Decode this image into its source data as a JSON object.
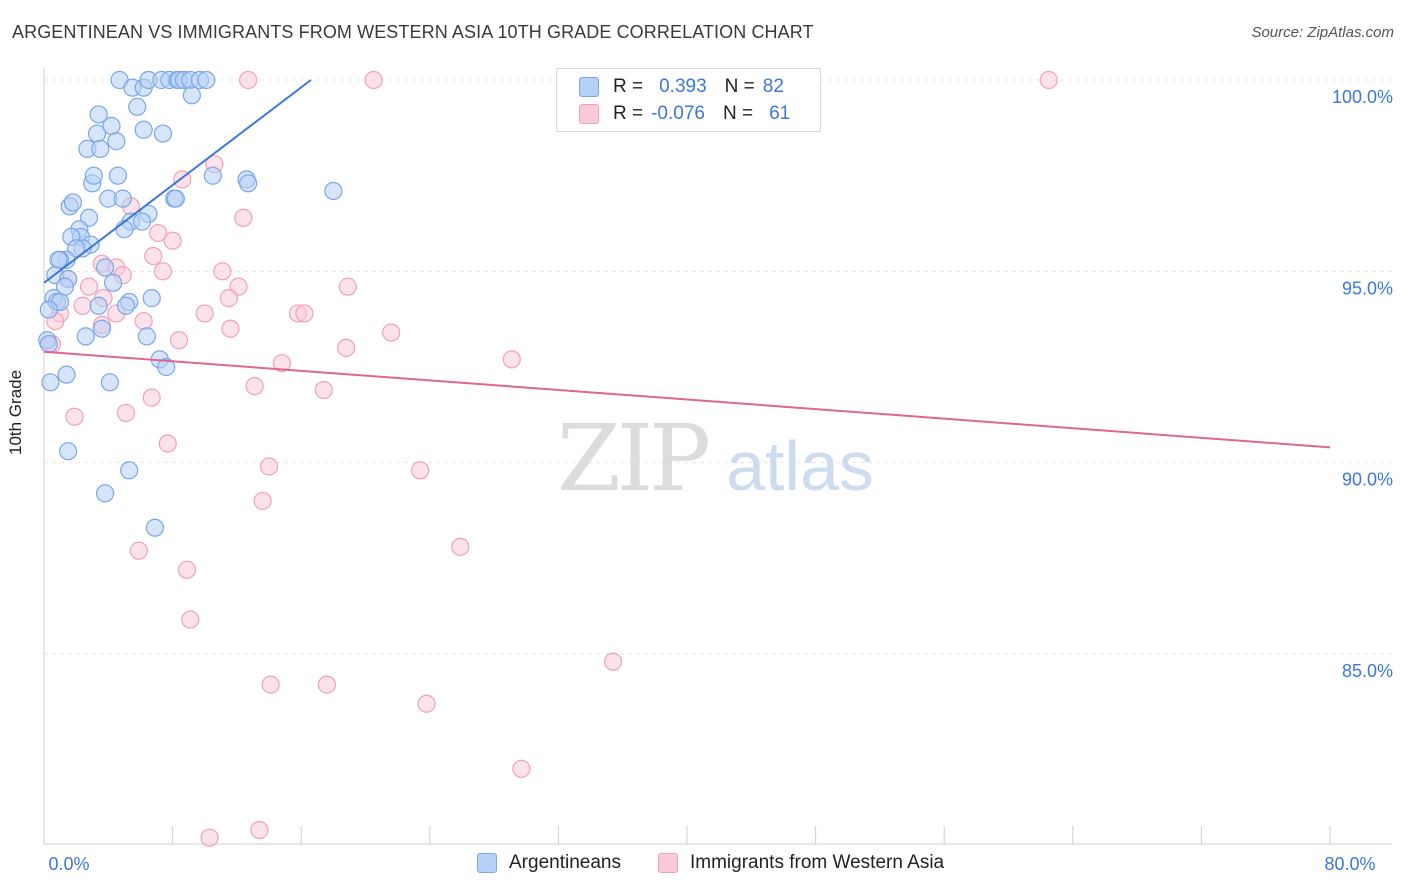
{
  "title": "ARGENTINEAN VS IMMIGRANTS FROM WESTERN ASIA 10TH GRADE CORRELATION CHART",
  "source": "Source: ZipAtlas.com",
  "watermark": {
    "zip": "ZIP",
    "atlas": "atlas"
  },
  "legend": {
    "rows": [
      {
        "r_label": "R =",
        "r_value": "0.393",
        "n_label": "N =",
        "n_value": "82",
        "color": "#7aa7e8",
        "fill": "#b7d0f5"
      },
      {
        "r_label": "R =",
        "r_value": "-0.076",
        "n_label": "N =",
        "n_value": "61",
        "color": "#f0a0bb",
        "fill": "#f9cbda"
      }
    ]
  },
  "bottom_legend": {
    "items": [
      {
        "label": "Argentineans",
        "color": "#7aa7e8",
        "fill": "#b7d0f5"
      },
      {
        "label": "Immigrants from Western Asia",
        "color": "#f0a0bb",
        "fill": "#f9cbda"
      }
    ]
  },
  "chart_data": {
    "type": "scatter",
    "title": "ARGENTINEAN VS IMMIGRANTS FROM WESTERN ASIA 10TH GRADE CORRELATION CHART",
    "xlabel": "",
    "ylabel": "10th Grade",
    "xlim": [
      0,
      80
    ],
    "ylim": [
      80,
      100.5
    ],
    "x_ticks": [
      0,
      8,
      16,
      24,
      32,
      40,
      48,
      56,
      64,
      72,
      80
    ],
    "x_tick_labels_shown": {
      "0": "0.0%",
      "80": "80.0%"
    },
    "y_ticks": [
      85,
      90,
      95,
      100
    ],
    "y_tick_labels": [
      "85.0%",
      "90.0%",
      "95.0%",
      "100.0%"
    ],
    "grid": "horizontal dashed",
    "legend_position": "top-center",
    "series": [
      {
        "name": "Argentineans",
        "color": "#3c78d8",
        "fill": "#b7d0f5",
        "stroke": "#7aa7e8",
        "trend": {
          "x": [
            0,
            16.6
          ],
          "y": [
            94.7,
            100
          ]
        },
        "points": [
          [
            4.7,
            100
          ],
          [
            5.5,
            99.8
          ],
          [
            6.2,
            99.8
          ],
          [
            6.5,
            100
          ],
          [
            7.3,
            100
          ],
          [
            7.8,
            100
          ],
          [
            8.3,
            100
          ],
          [
            8.4,
            100
          ],
          [
            8.7,
            100
          ],
          [
            9.1,
            100
          ],
          [
            9.7,
            100
          ],
          [
            10.1,
            100
          ],
          [
            5.8,
            99.3
          ],
          [
            9.2,
            99.6
          ],
          [
            3.4,
            99.1
          ],
          [
            3.3,
            98.6
          ],
          [
            4.2,
            98.8
          ],
          [
            6.2,
            98.7
          ],
          [
            7.4,
            98.6
          ],
          [
            2.7,
            98.2
          ],
          [
            3.5,
            98.2
          ],
          [
            4.5,
            98.4
          ],
          [
            3.0,
            97.3
          ],
          [
            4.6,
            97.5
          ],
          [
            3.1,
            97.5
          ],
          [
            10.5,
            97.5
          ],
          [
            12.6,
            97.4
          ],
          [
            12.7,
            97.3
          ],
          [
            18.0,
            97.1
          ],
          [
            1.6,
            96.7
          ],
          [
            1.8,
            96.8
          ],
          [
            4.0,
            96.9
          ],
          [
            4.9,
            96.9
          ],
          [
            8.1,
            96.9
          ],
          [
            8.2,
            96.9
          ],
          [
            2.8,
            96.4
          ],
          [
            5.4,
            96.3
          ],
          [
            6.5,
            96.5
          ],
          [
            5.0,
            96.1
          ],
          [
            6.1,
            96.3
          ],
          [
            2.2,
            96.1
          ],
          [
            2.3,
            95.9
          ],
          [
            1.7,
            95.9
          ],
          [
            2.9,
            95.7
          ],
          [
            2.4,
            95.6
          ],
          [
            2.0,
            95.6
          ],
          [
            1.4,
            95.3
          ],
          [
            1.0,
            95.3
          ],
          [
            0.9,
            95.3
          ],
          [
            3.8,
            95.1
          ],
          [
            0.7,
            94.9
          ],
          [
            1.5,
            94.8
          ],
          [
            4.3,
            94.7
          ],
          [
            1.3,
            94.6
          ],
          [
            0.6,
            94.3
          ],
          [
            0.8,
            94.2
          ],
          [
            1.0,
            94.2
          ],
          [
            5.3,
            94.2
          ],
          [
            5.1,
            94.1
          ],
          [
            6.7,
            94.3
          ],
          [
            0.3,
            94.0
          ],
          [
            3.4,
            94.1
          ],
          [
            3.6,
            93.5
          ],
          [
            2.6,
            93.3
          ],
          [
            6.4,
            93.3
          ],
          [
            0.2,
            93.2
          ],
          [
            0.3,
            93.1
          ],
          [
            7.2,
            92.7
          ],
          [
            7.6,
            92.5
          ],
          [
            1.4,
            92.3
          ],
          [
            0.4,
            92.1
          ],
          [
            4.1,
            92.1
          ],
          [
            1.5,
            90.3
          ],
          [
            5.3,
            89.8
          ],
          [
            3.8,
            89.2
          ],
          [
            6.9,
            88.3
          ]
        ]
      },
      {
        "name": "Immigrants from Western Asia",
        "color": "#e06690",
        "fill": "#f9cbda",
        "stroke": "#f0a0bb",
        "trend": {
          "x": [
            0,
            80
          ],
          "y": [
            92.9,
            90.4
          ]
        },
        "points": [
          [
            12.7,
            100
          ],
          [
            20.5,
            100
          ],
          [
            43.2,
            100
          ],
          [
            62.5,
            100
          ],
          [
            10.6,
            97.8
          ],
          [
            8.6,
            97.4
          ],
          [
            12.4,
            96.4
          ],
          [
            5.4,
            96.7
          ],
          [
            7.1,
            96.0
          ],
          [
            8.0,
            95.8
          ],
          [
            6.8,
            95.4
          ],
          [
            3.6,
            95.2
          ],
          [
            4.5,
            95.1
          ],
          [
            7.4,
            95.0
          ],
          [
            11.1,
            95.0
          ],
          [
            4.9,
            94.9
          ],
          [
            1.5,
            94.8
          ],
          [
            2.8,
            94.6
          ],
          [
            12.1,
            94.6
          ],
          [
            18.9,
            94.6
          ],
          [
            3.7,
            94.3
          ],
          [
            11.5,
            94.3
          ],
          [
            2.4,
            94.1
          ],
          [
            1.0,
            93.9
          ],
          [
            4.5,
            93.9
          ],
          [
            10.0,
            93.9
          ],
          [
            15.8,
            93.9
          ],
          [
            16.2,
            93.9
          ],
          [
            6.2,
            93.7
          ],
          [
            3.6,
            93.6
          ],
          [
            0.7,
            93.7
          ],
          [
            11.6,
            93.5
          ],
          [
            21.6,
            93.4
          ],
          [
            0.5,
            93.1
          ],
          [
            8.4,
            93.2
          ],
          [
            18.8,
            93.0
          ],
          [
            14.8,
            92.6
          ],
          [
            29.1,
            92.7
          ],
          [
            13.1,
            92.0
          ],
          [
            17.4,
            91.9
          ],
          [
            6.7,
            91.7
          ],
          [
            1.9,
            91.2
          ],
          [
            5.1,
            91.3
          ],
          [
            7.7,
            90.5
          ],
          [
            14.0,
            89.9
          ],
          [
            23.4,
            89.8
          ],
          [
            13.6,
            89.0
          ],
          [
            5.9,
            87.7
          ],
          [
            25.9,
            87.8
          ],
          [
            8.9,
            87.2
          ],
          [
            9.1,
            85.9
          ],
          [
            35.4,
            84.8
          ],
          [
            14.1,
            84.2
          ],
          [
            17.6,
            84.2
          ],
          [
            23.8,
            83.7
          ],
          [
            29.7,
            82.0
          ],
          [
            10.3,
            80.2
          ],
          [
            13.4,
            80.4
          ]
        ]
      }
    ]
  }
}
